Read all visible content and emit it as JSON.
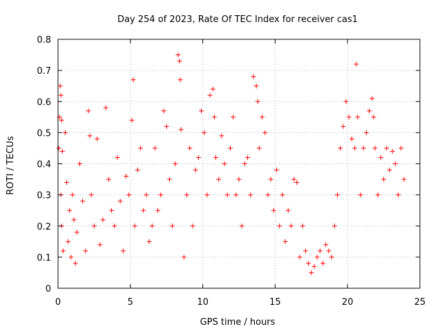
{
  "chart_data": {
    "type": "scatter",
    "title": "Day 254 of 2023, Rate Of TEC Index for receiver cas1",
    "xlabel": "GPS time / hours",
    "ylabel": "ROTI / TECUs",
    "xlim": [
      0,
      25
    ],
    "ylim": [
      0,
      0.8
    ],
    "xticks": [
      0,
      5,
      10,
      15,
      20,
      25
    ],
    "xtick_labels": [
      "0",
      "5",
      "10",
      "15",
      "20",
      "25"
    ],
    "yticks": [
      0,
      0.1,
      0.2,
      0.3,
      0.4,
      0.5,
      0.6,
      0.7,
      0.8
    ],
    "ytick_labels": [
      "0",
      "0.1",
      "0.2",
      "0.3",
      "0.4",
      "0.5",
      "0.6",
      "0.7",
      "0.8"
    ],
    "grid": true,
    "marker": "+",
    "color": "#ff0000",
    "series": [
      {
        "x": [
          0.05,
          0.1,
          0.15,
          0.2,
          0.25,
          0.3,
          0.2,
          0.25,
          0.35,
          0.5,
          0.6,
          0.7,
          0.8,
          0.9,
          1.0,
          1.1,
          1.2,
          1.3,
          1.5,
          1.7,
          1.9,
          2.1,
          2.2,
          2.3,
          2.5,
          2.7,
          2.9,
          3.1,
          3.3,
          3.5,
          3.7,
          3.9,
          4.1,
          4.3,
          4.5,
          4.7,
          4.9,
          5.1,
          5.2,
          5.3,
          5.5,
          5.7,
          5.9,
          6.1,
          6.3,
          6.5,
          6.7,
          6.9,
          7.1,
          7.3,
          7.5,
          7.7,
          7.9,
          8.1,
          8.3,
          8.4,
          8.45,
          8.5,
          8.7,
          8.9,
          9.1,
          9.3,
          9.5,
          9.7,
          9.9,
          10.1,
          10.3,
          10.5,
          10.7,
          10.8,
          10.9,
          11.1,
          11.3,
          11.5,
          11.7,
          11.9,
          12.1,
          12.3,
          12.5,
          12.7,
          12.9,
          13.1,
          13.3,
          13.5,
          13.7,
          13.8,
          13.9,
          14.1,
          14.3,
          14.5,
          14.7,
          14.9,
          15.1,
          15.3,
          15.5,
          15.7,
          15.9,
          16.1,
          16.3,
          16.5,
          16.7,
          16.9,
          17.1,
          17.3,
          17.5,
          17.7,
          17.9,
          18.1,
          18.3,
          18.5,
          18.7,
          18.9,
          19.1,
          19.3,
          19.5,
          19.7,
          19.9,
          20.1,
          20.3,
          20.5,
          20.6,
          20.7,
          20.9,
          21.1,
          21.3,
          21.5,
          21.7,
          21.8,
          21.9,
          22.1,
          22.3,
          22.5,
          22.7,
          22.9,
          23.1,
          23.3,
          23.5,
          23.7,
          23.9
        ],
        "y": [
          0.45,
          0.55,
          0.65,
          0.62,
          0.54,
          0.44,
          0.3,
          0.2,
          0.12,
          0.5,
          0.34,
          0.15,
          0.25,
          0.1,
          0.3,
          0.22,
          0.08,
          0.18,
          0.4,
          0.28,
          0.12,
          0.57,
          0.49,
          0.3,
          0.2,
          0.48,
          0.14,
          0.22,
          0.58,
          0.35,
          0.25,
          0.2,
          0.42,
          0.28,
          0.12,
          0.36,
          0.3,
          0.54,
          0.67,
          0.2,
          0.38,
          0.45,
          0.25,
          0.3,
          0.15,
          0.2,
          0.45,
          0.25,
          0.3,
          0.57,
          0.52,
          0.35,
          0.2,
          0.4,
          0.75,
          0.73,
          0.67,
          0.51,
          0.1,
          0.3,
          0.45,
          0.2,
          0.38,
          0.42,
          0.57,
          0.5,
          0.3,
          0.62,
          0.64,
          0.55,
          0.42,
          0.35,
          0.49,
          0.4,
          0.3,
          0.45,
          0.55,
          0.3,
          0.35,
          0.2,
          0.4,
          0.42,
          0.3,
          0.68,
          0.65,
          0.6,
          0.45,
          0.55,
          0.5,
          0.3,
          0.35,
          0.25,
          0.38,
          0.2,
          0.3,
          0.15,
          0.25,
          0.2,
          0.35,
          0.34,
          0.1,
          0.2,
          0.12,
          0.08,
          0.05,
          0.07,
          0.1,
          0.12,
          0.08,
          0.14,
          0.12,
          0.1,
          0.2,
          0.3,
          0.45,
          0.52,
          0.6,
          0.55,
          0.48,
          0.45,
          0.72,
          0.55,
          0.3,
          0.45,
          0.5,
          0.57,
          0.61,
          0.55,
          0.45,
          0.3,
          0.42,
          0.35,
          0.45,
          0.38,
          0.44,
          0.4,
          0.3,
          0.45,
          0.35
        ]
      }
    ]
  }
}
